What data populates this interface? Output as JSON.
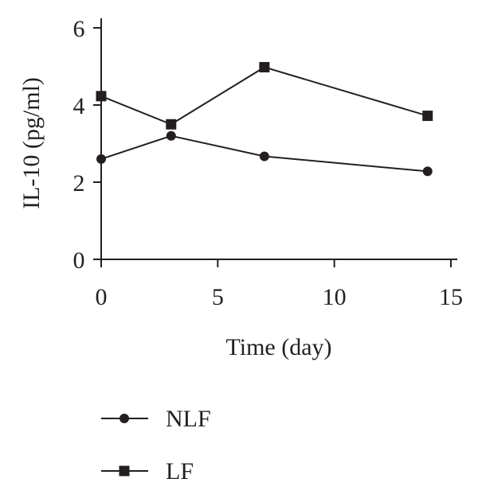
{
  "chart_data": {
    "type": "line",
    "title": "",
    "xlabel": "Time (day)",
    "ylabel": "IL-10 (pg/ml)",
    "xlim": [
      0,
      15
    ],
    "ylim": [
      0,
      6
    ],
    "x_ticks": [
      0,
      5,
      10,
      15
    ],
    "y_ticks": [
      0,
      2,
      4,
      6
    ],
    "grid": false,
    "legend_position": "bottom-left",
    "series": [
      {
        "name": "NLF",
        "marker": "circle",
        "color": "#231f20",
        "x": [
          0,
          3,
          7,
          14
        ],
        "y": [
          2.6,
          3.2,
          2.67,
          2.28
        ]
      },
      {
        "name": "LF",
        "marker": "square",
        "color": "#231f20",
        "x": [
          0,
          3,
          7,
          14
        ],
        "y": [
          4.23,
          3.5,
          4.98,
          3.72
        ]
      }
    ]
  }
}
